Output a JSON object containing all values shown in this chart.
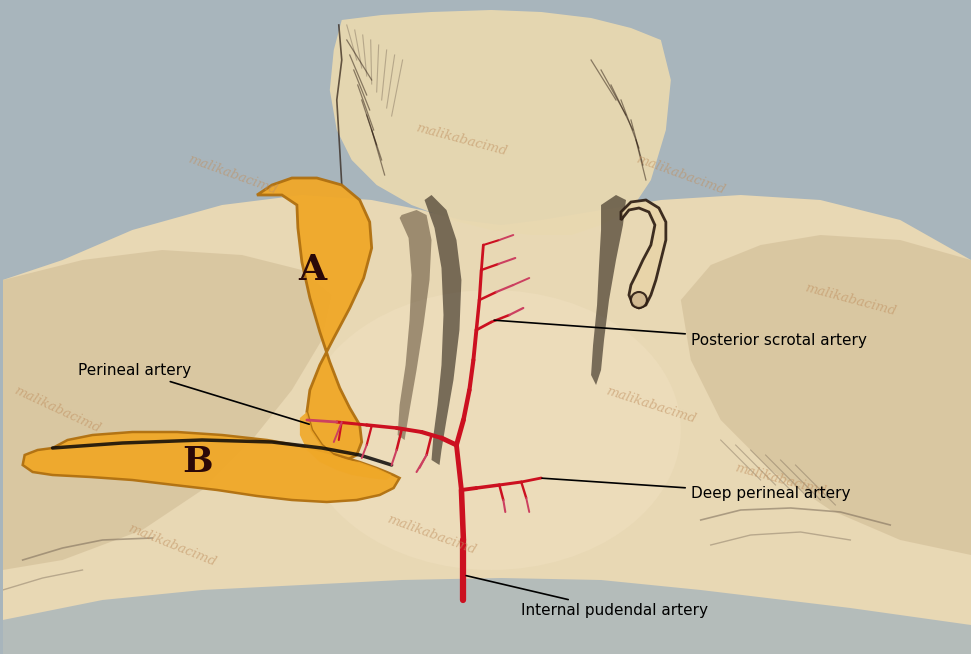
{
  "bg_color": "#a8b5bc",
  "skin_light": "#e8d8b4",
  "skin_mid": "#d4c09a",
  "skin_dark": "#c0a878",
  "paper_color": "#e8d8b0",
  "paper_dark": "#c8b888",
  "orange_color": "#f0a828",
  "orange_edge": "#b07010",
  "artery_red": "#cc1020",
  "artery_pink": "#cc4060",
  "dark_brown": "#1a0808",
  "sketch_gray": "#706050",
  "sketch_dark": "#2a1a10",
  "label_A": "A",
  "label_B": "B",
  "ann1": "Perineal artery",
  "ann2": "Posterior scrotal artery",
  "ann3": "Deep perineal artery",
  "ann4": "Internal pudendal artery",
  "watermark": "malikabacimd",
  "wm_color": "#c09060",
  "annot_fs": 11,
  "label_fs": 26
}
